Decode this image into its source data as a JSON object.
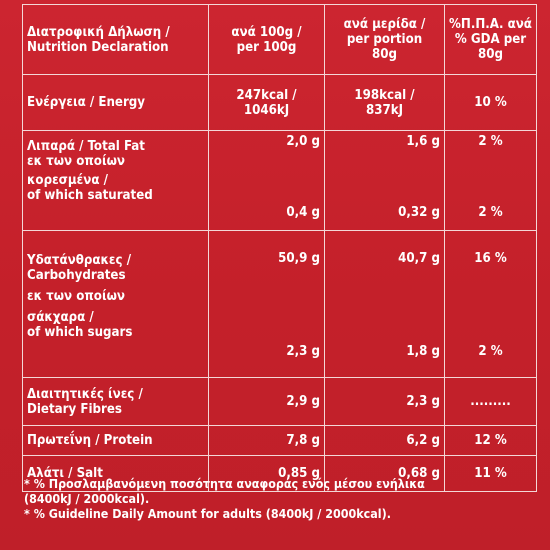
{
  "header": {
    "col1_line1": "Διατροφική Δήλωση /",
    "col1_line2": "Nutrition Declaration",
    "col2_line1": "ανά 100g /",
    "col2_line2": "per 100g",
    "col3_line1": "ανά μερίδα /",
    "col3_line2": "per portion",
    "col3_line3": "80g",
    "col4_line1": "%Π.Π.Α. ανά /",
    "col4_line2": "% GDA per",
    "col4_line3": "80g"
  },
  "rows": {
    "energy": {
      "name": "Ενέργεια / Energy",
      "per100_line1": "247kcal /",
      "per100_line2": "1046kJ",
      "portion_line1": "198kcal /",
      "portion_line2": "837kJ",
      "gda": "10 %"
    },
    "fat": {
      "name": "Λιπαρά / Total Fat",
      "per100": "2,0 g",
      "portion": "1,6 g",
      "gda": "2 %"
    },
    "saturated": {
      "name_line1": "εκ των οποίων",
      "name_line2": "κορεσμένα /",
      "name_line3": "of which saturated",
      "per100": "0,4 g",
      "portion": "0,32 g",
      "gda": "2 %"
    },
    "carbs": {
      "name_line1": "Υδατάνθρακες /",
      "name_line2": "Carbohydrates",
      "per100": "50,9 g",
      "portion": "40,7 g",
      "gda": "16 %"
    },
    "sugars": {
      "name_line1": "εκ των οποίων",
      "name_line2": "σάκχαρα /",
      "name_line3": "of which sugars",
      "per100": "2,3 g",
      "portion": "1,8 g",
      "gda": "2 %"
    },
    "fibres": {
      "name_line1": "Διαιτητικές ίνες /",
      "name_line2": "Dietary Fibres",
      "per100": "2,9 g",
      "portion": "2,3 g",
      "gda": "........."
    },
    "protein": {
      "name": "Πρωτεΐνη / Protein",
      "per100": "7,8 g",
      "portion": "6,2 g",
      "gda": "12 %"
    },
    "salt": {
      "name": "Αλάτι / Salt",
      "per100": "0,85 g",
      "portion": "0,68 g",
      "gda": "11 %"
    }
  },
  "footnote": {
    "line1": "* % Προσλαμβανόμενη ποσότητα αναφοράς ενός μέσου ενήλικα",
    "line2": "(8400kJ / 2000kcal).",
    "line3": "* % Guideline Daily Amount for adults (8400kJ / 2000kcal)."
  },
  "colors": {
    "background": "#c8232c",
    "text": "#ffffff",
    "border": "#f4d7d7"
  }
}
